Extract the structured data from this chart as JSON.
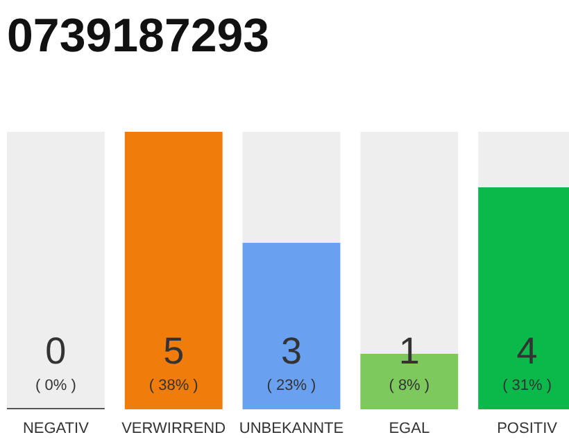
{
  "chart_data": {
    "type": "bar",
    "title": "0739187293",
    "categories": [
      "NEGATIV",
      "VERWIRREND",
      "UNBEKANNTE",
      "EGAL",
      "POSITIV"
    ],
    "values": [
      0,
      5,
      3,
      1,
      4
    ],
    "colors": [
      "#555555",
      "#f07c0c",
      "#6aa0f0",
      "#7dc95e",
      "#0bb84a"
    ],
    "tick_labels": "x",
    "value_labels": [
      "0",
      "5",
      "3",
      "1",
      "4"
    ],
    "annotations": [
      "( 0% )",
      "( 38% )",
      "( 23% )",
      "( 8% )",
      "( 31% )"
    ]
  }
}
